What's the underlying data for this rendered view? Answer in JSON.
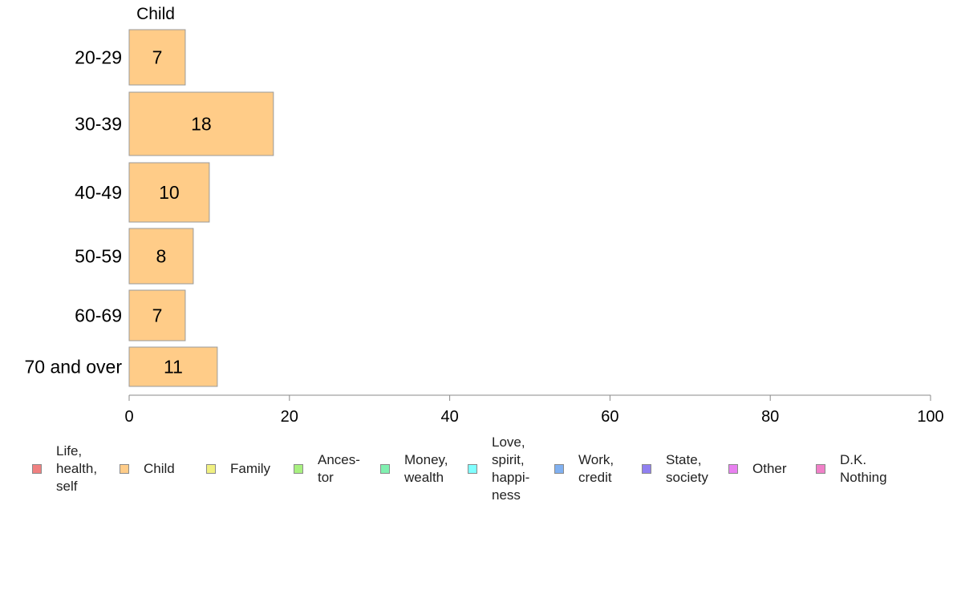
{
  "chart_data": {
    "type": "bar",
    "orientation": "horizontal",
    "panel_title": "Child",
    "categories": [
      "20-29",
      "30-39",
      "40-49",
      "50-59",
      "60-69",
      "70 and over"
    ],
    "series": [
      {
        "name": "Child",
        "values": [
          7,
          18,
          10,
          8,
          7,
          11
        ],
        "color": "#FFCC88"
      }
    ],
    "xlim": [
      0,
      100
    ],
    "xticks": [
      0,
      20,
      40,
      60,
      80,
      100
    ],
    "grid": false,
    "legend_placement": "bottom",
    "legend": [
      {
        "label": "Life,\nhealth,\nself",
        "color": "#F08080"
      },
      {
        "label": "Child",
        "color": "#FFCC88"
      },
      {
        "label": "Family",
        "color": "#F0F080"
      },
      {
        "label": "Ances-\ntor",
        "color": "#A8F080"
      },
      {
        "label": "Money,\nwealth",
        "color": "#80F0B0"
      },
      {
        "label": "Love,\nspirit,\nhappi-\nness",
        "color": "#80FFFF"
      },
      {
        "label": "Work,\ncredit",
        "color": "#80B0F0"
      },
      {
        "label": "State,\nsociety",
        "color": "#9080F0"
      },
      {
        "label": "Other",
        "color": "#E880F0"
      },
      {
        "label": "D.K.\nNothing",
        "color": "#F080C8"
      }
    ]
  }
}
